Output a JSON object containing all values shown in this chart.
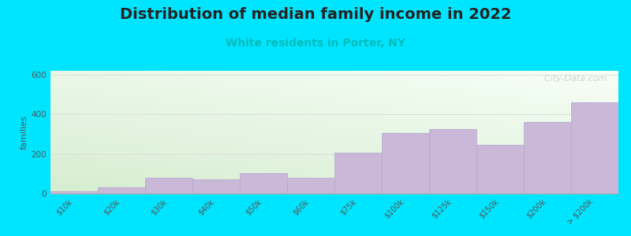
{
  "title": "Distribution of median family income in 2022",
  "subtitle": "White residents in Porter, NY",
  "ylabel": "families",
  "categories": [
    "$10k",
    "$20k",
    "$30k",
    "$40k",
    "$50k",
    "$60k",
    "$75k",
    "$100k",
    "$125k",
    "$150k",
    "$200k",
    "> $200k"
  ],
  "values": [
    10,
    30,
    80,
    70,
    105,
    80,
    205,
    305,
    325,
    245,
    360,
    460
  ],
  "bar_color": "#c9b8d8",
  "bar_edge_color": "#b5a5cc",
  "ylim": [
    0,
    620
  ],
  "yticks": [
    0,
    200,
    400,
    600
  ],
  "background_color": "#00e5ff",
  "plot_bg_topleft": "#d8eed0",
  "plot_bg_topright": "#f8fef8",
  "plot_bg_bottomright": "#ffffff",
  "title_fontsize": 14,
  "subtitle_fontsize": 10,
  "subtitle_color": "#00bbbb",
  "ylabel_fontsize": 8,
  "watermark": "  City-Data.com",
  "grid_color": "#dddddd",
  "tick_fontsize": 7
}
